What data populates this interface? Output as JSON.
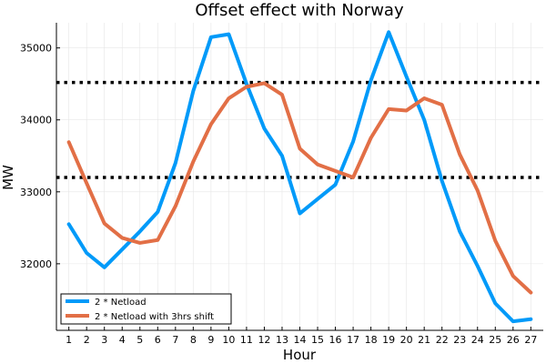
{
  "chart_data": {
    "type": "line",
    "title": "Offset effect with Norway",
    "xlabel": "Hour",
    "ylabel": "MW",
    "x": [
      1,
      2,
      3,
      4,
      5,
      6,
      7,
      8,
      9,
      10,
      11,
      12,
      13,
      14,
      15,
      16,
      17,
      18,
      19,
      20,
      21,
      22,
      23,
      24,
      25,
      26,
      27
    ],
    "xlim": [
      0.3,
      27.7
    ],
    "ylim": [
      31075,
      35350
    ],
    "yticks": [
      32000,
      33000,
      34000,
      35000
    ],
    "grid": true,
    "legend_position": "bottom-left",
    "series": [
      {
        "name": "2 * Netload",
        "color": "#009af9",
        "values": [
          32550,
          32150,
          31950,
          32200,
          32450,
          32720,
          33400,
          34400,
          35150,
          35190,
          34500,
          33880,
          33500,
          32700,
          32900,
          33100,
          33700,
          34550,
          35220,
          34600,
          34000,
          33150,
          32450,
          31970,
          31450,
          31200,
          31230
        ]
      },
      {
        "name": "2 * Netload with 3hrs shift",
        "color": "#e26f46",
        "values": [
          33690,
          33120,
          32560,
          32360,
          32290,
          32330,
          32800,
          33420,
          33940,
          34300,
          34460,
          34510,
          34350,
          33600,
          33380,
          33290,
          33200,
          33750,
          34150,
          34130,
          34300,
          34210,
          33520,
          33020,
          32320,
          31830,
          31600
        ]
      }
    ],
    "reference_lines": [
      {
        "y": 34520,
        "style": "dotted",
        "color": "#000000"
      },
      {
        "y": 33200,
        "style": "dotted",
        "color": "#000000"
      }
    ]
  }
}
